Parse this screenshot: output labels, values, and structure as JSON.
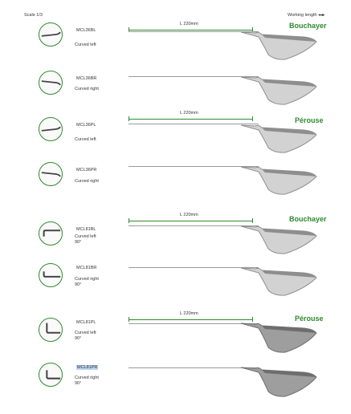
{
  "header": {
    "scale_label": "Scale 1/3",
    "working_length_label": "Working length ◂◂▸"
  },
  "groups": [
    {
      "label": "Bouchayer",
      "measure_label": "L 220mm"
    },
    {
      "label": "Pérouse",
      "measure_label": "L 220mm"
    },
    {
      "label": "Bouchayer",
      "measure_label": "L 220mm"
    },
    {
      "label": "Pérouse",
      "measure_label": "L 220mm"
    }
  ],
  "items": [
    {
      "code": "MCL36BL",
      "desc": [
        "Curved left"
      ],
      "icon": "curved-left-tip-icon"
    },
    {
      "code": "MCL36BR",
      "desc": [
        "Curved right"
      ],
      "icon": "curved-right-tip-icon"
    },
    {
      "code": "MCL36PL",
      "desc": [
        "Curved left"
      ],
      "icon": "curved-left-tip-icon"
    },
    {
      "code": "MCL36PR",
      "desc": [
        "Curved right"
      ],
      "icon": "curved-right-tip-icon"
    },
    {
      "code": "MCL81BL",
      "desc": [
        "Curved left",
        "90°"
      ],
      "icon": "hook-left-90-tip-icon"
    },
    {
      "code": "MCL81BR",
      "desc": [
        "Curved right",
        "90°"
      ],
      "icon": "hook-right-90-tip-icon"
    },
    {
      "code": "MCL81PL",
      "desc": [
        "Curved left",
        "90°"
      ],
      "icon": "hook-left-90-tip-icon"
    },
    {
      "code": "MCL81PR",
      "desc": [
        "Curved right",
        "90°"
      ],
      "icon": "hook-right-90-tip-icon",
      "selected": true
    }
  ],
  "colors": {
    "accent_green": "#2e8a2e",
    "handle_light": "#d2d2d2",
    "handle_dark": "#8e8e8e",
    "selection": "#bcd4f2"
  }
}
